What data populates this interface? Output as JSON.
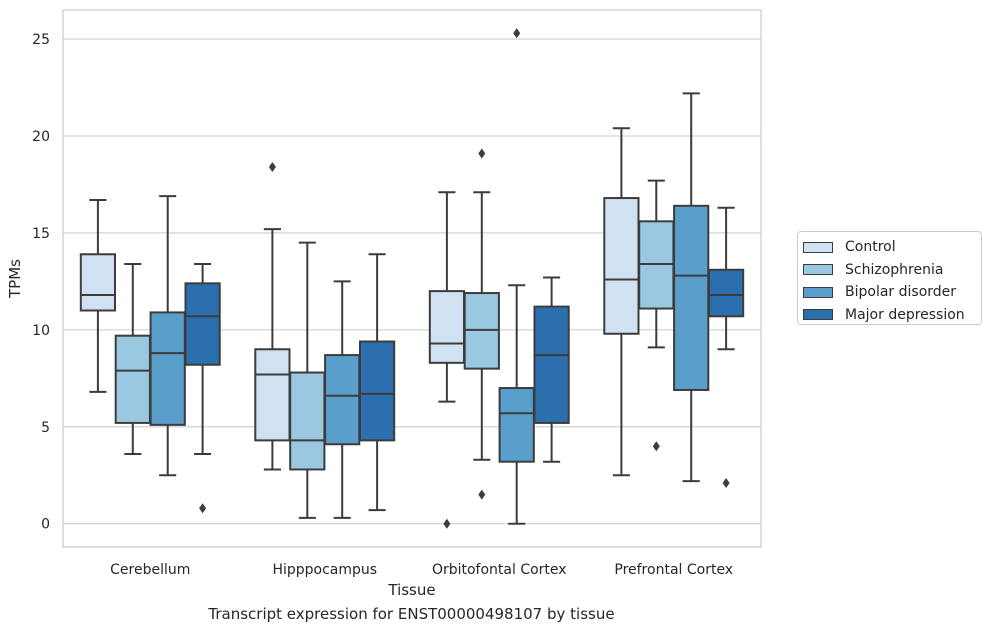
{
  "chart_data": {
    "type": "boxplot",
    "caption": "Transcript expression for ENST00000498107 by tissue",
    "xlabel": "Tissue",
    "ylabel": "TPMs",
    "ylim": [
      -1.2,
      26.5
    ],
    "yticks": [
      0,
      5,
      10,
      15,
      20,
      25
    ],
    "grid": "horizontal",
    "legend_position": "right-outside",
    "categories": [
      "Cerebellum",
      "Hipppocampus",
      "Orbitofontal Cortex",
      "Prefrontal Cortex"
    ],
    "series": [
      {
        "name": "Control",
        "color": "#d0e1f2",
        "boxes": [
          {
            "whislo": 6.8,
            "q1": 11.0,
            "med": 11.8,
            "q3": 13.9,
            "whishi": 16.7,
            "fliers": []
          },
          {
            "whislo": 2.8,
            "q1": 4.3,
            "med": 7.7,
            "q3": 9.0,
            "whishi": 15.2,
            "fliers": [
              18.4
            ]
          },
          {
            "whislo": 6.3,
            "q1": 8.3,
            "med": 9.3,
            "q3": 12.0,
            "whishi": 17.1,
            "fliers": [
              0.0
            ]
          },
          {
            "whislo": 2.5,
            "q1": 9.8,
            "med": 12.6,
            "q3": 16.8,
            "whishi": 20.4,
            "fliers": []
          }
        ]
      },
      {
        "name": "Schizophrenia",
        "color": "#9ac8e0",
        "boxes": [
          {
            "whislo": 3.6,
            "q1": 5.2,
            "med": 7.9,
            "q3": 9.7,
            "whishi": 13.4,
            "fliers": []
          },
          {
            "whislo": 0.3,
            "q1": 2.8,
            "med": 4.3,
            "q3": 7.8,
            "whishi": 14.5,
            "fliers": []
          },
          {
            "whislo": 3.3,
            "q1": 8.0,
            "med": 10.0,
            "q3": 11.9,
            "whishi": 17.1,
            "fliers": [
              1.5,
              19.1
            ]
          },
          {
            "whislo": 9.1,
            "q1": 11.1,
            "med": 13.4,
            "q3": 15.6,
            "whishi": 17.7,
            "fliers": [
              4.0
            ]
          }
        ]
      },
      {
        "name": "Bipolar disorder",
        "color": "#5a9ecc",
        "boxes": [
          {
            "whislo": 2.5,
            "q1": 5.1,
            "med": 8.8,
            "q3": 10.9,
            "whishi": 16.9,
            "fliers": []
          },
          {
            "whislo": 0.3,
            "q1": 4.1,
            "med": 6.6,
            "q3": 8.7,
            "whishi": 12.5,
            "fliers": []
          },
          {
            "whislo": 0.0,
            "q1": 3.2,
            "med": 5.7,
            "q3": 7.0,
            "whishi": 12.3,
            "fliers": [
              25.3
            ]
          },
          {
            "whislo": 2.2,
            "q1": 6.9,
            "med": 12.8,
            "q3": 16.4,
            "whishi": 22.2,
            "fliers": []
          }
        ]
      },
      {
        "name": "Major depression",
        "color": "#2b6faf",
        "boxes": [
          {
            "whislo": 3.6,
            "q1": 8.2,
            "med": 10.7,
            "q3": 12.4,
            "whishi": 13.4,
            "fliers": [
              0.8
            ]
          },
          {
            "whislo": 0.7,
            "q1": 4.3,
            "med": 6.7,
            "q3": 9.4,
            "whishi": 13.9,
            "fliers": []
          },
          {
            "whislo": 3.2,
            "q1": 5.2,
            "med": 8.7,
            "q3": 11.2,
            "whishi": 12.7,
            "fliers": []
          },
          {
            "whislo": 9.0,
            "q1": 10.7,
            "med": 11.8,
            "q3": 13.1,
            "whishi": 16.3,
            "fliers": [
              2.1
            ]
          }
        ]
      }
    ]
  }
}
